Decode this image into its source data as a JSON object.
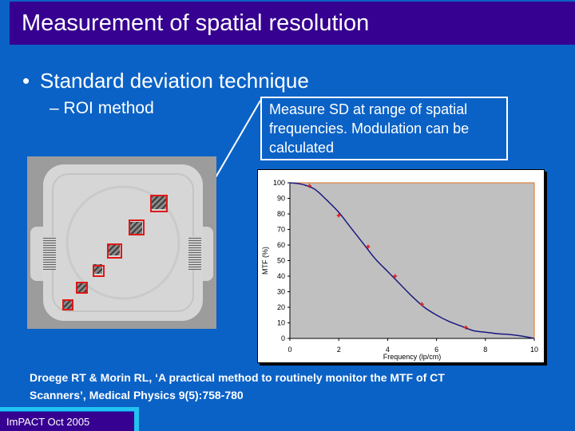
{
  "title": "Measurement of spatial resolution",
  "bullets": {
    "level1": "Standard deviation technique",
    "level2": "ROI method",
    "bullet1_marker": "•",
    "bullet2_marker": "–"
  },
  "callout": {
    "line1": "Measure SD at range of spatial",
    "line2": "frequencies.  Modulation can be",
    "line3": "calculated"
  },
  "citation": {
    "line1": "Droege RT & Morin RL, ‘A practical method to routinely monitor the MTF of CT",
    "line2": "Scanners’, Medical Physics 9(5):758-780"
  },
  "footer": "ImPACT Oct 2005",
  "colors": {
    "background": "#0b62c6",
    "title_bar": "#360090",
    "roi_box": "#e01818",
    "plot_area": "#c0c0c0",
    "curve": "#1a1a80",
    "marker": "#e01818",
    "plot_border": "#e07020"
  },
  "chart_data": {
    "type": "line",
    "xlabel": "Frequency (lp/cm)",
    "ylabel": "MTF (%)",
    "xlim": [
      0,
      10
    ],
    "ylim": [
      0,
      100
    ],
    "x_ticks": [
      "0",
      "2",
      "4",
      "6",
      "8",
      "10"
    ],
    "y_ticks": [
      "0",
      "10",
      "20",
      "30",
      "40",
      "50",
      "60",
      "70",
      "80",
      "90",
      "100"
    ],
    "grid": false,
    "curve": {
      "x": [
        0,
        0.5,
        1.0,
        1.5,
        2.0,
        2.5,
        3.0,
        3.5,
        4.0,
        4.5,
        5.0,
        5.5,
        6.0,
        6.5,
        7.0,
        7.5,
        8.0,
        8.5,
        9.0,
        9.5,
        10.0
      ],
      "y": [
        100,
        99,
        96,
        89,
        81,
        71,
        61,
        51,
        43,
        35,
        27,
        20,
        15,
        11,
        8,
        5,
        4,
        3,
        2.5,
        1.5,
        0
      ]
    },
    "points": {
      "x": [
        0.8,
        2.0,
        3.2,
        4.3,
        5.4,
        7.2
      ],
      "y": [
        98,
        79,
        59,
        40,
        22,
        7
      ]
    }
  }
}
